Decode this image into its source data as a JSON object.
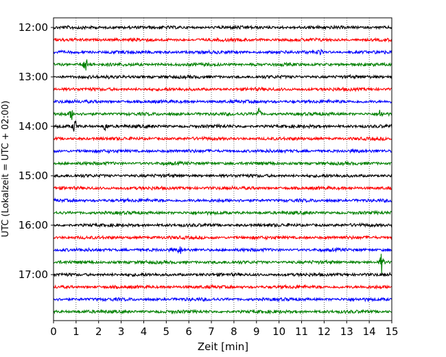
{
  "chart_data": {
    "type": "line",
    "subtype": "helicorder",
    "title": "",
    "xlabel": "Zeit  [min]",
    "ylabel": "UTC (Lokalzeit = UTC + 02:00)",
    "xlim": [
      0,
      15
    ],
    "x_ticks": [
      "0",
      "1",
      "2",
      "3",
      "4",
      "5",
      "6",
      "7",
      "8",
      "9",
      "10",
      "11",
      "12",
      "13",
      "14",
      "15"
    ],
    "y_ticks": [
      "12:00",
      "13:00",
      "14:00",
      "15:00",
      "16:00",
      "17:00"
    ],
    "trace_interval_min": 15,
    "first_trace_time": "12:00",
    "trace_count": 24,
    "trace_colors": [
      "#000000",
      "#ff0000",
      "#0000ff",
      "#008000"
    ],
    "grid": "vertical dotted lines at each minute",
    "events": [
      {
        "trace": 3,
        "minute": 1.4,
        "amplitude": 1.6
      },
      {
        "trace": 7,
        "minute": 0.8,
        "amplitude": 0.9
      },
      {
        "trace": 7,
        "minute": 9.1,
        "amplitude": 1.2
      },
      {
        "trace": 7,
        "minute": 14.5,
        "amplitude": 0.9
      },
      {
        "trace": 8,
        "minute": 0.95,
        "amplitude": 1.4
      },
      {
        "trace": 8,
        "minute": 2.3,
        "amplitude": 0.9
      },
      {
        "trace": 2,
        "minute": 11.8,
        "amplitude": 0.6
      },
      {
        "trace": 23,
        "minute": 0.0,
        "amplitude": 0.0
      },
      {
        "trace": 19,
        "minute": 14.55,
        "amplitude": 1.8
      },
      {
        "trace": 18,
        "minute": 5.6,
        "amplitude": 0.6
      }
    ]
  }
}
